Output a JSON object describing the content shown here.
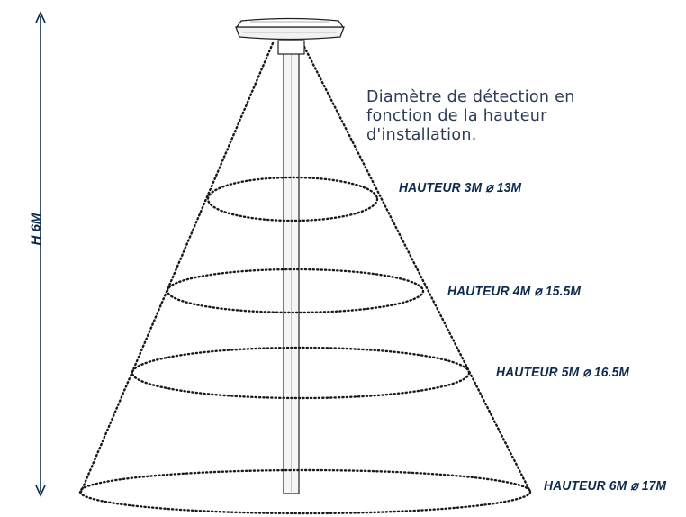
{
  "description": {
    "lines": [
      "Diamètre de détection en",
      "fonction de la hauteur",
      "d'installation."
    ]
  },
  "height_label": "H 6M",
  "levels": [
    {
      "label": "HAUTEUR 3M ⌀ 13M"
    },
    {
      "label": "HAUTEUR 4M ⌀ 15.5M"
    },
    {
      "label": "HAUTEUR 5M ⌀ 16.5M"
    },
    {
      "label": "HAUTEUR 6M ⌀ 17M"
    }
  ],
  "colors": {
    "text_dark": "#0c2b4d",
    "desc_text": "#2b3a55",
    "lines": "#1a1a1a",
    "pole_fill": "#f5f5f5"
  }
}
